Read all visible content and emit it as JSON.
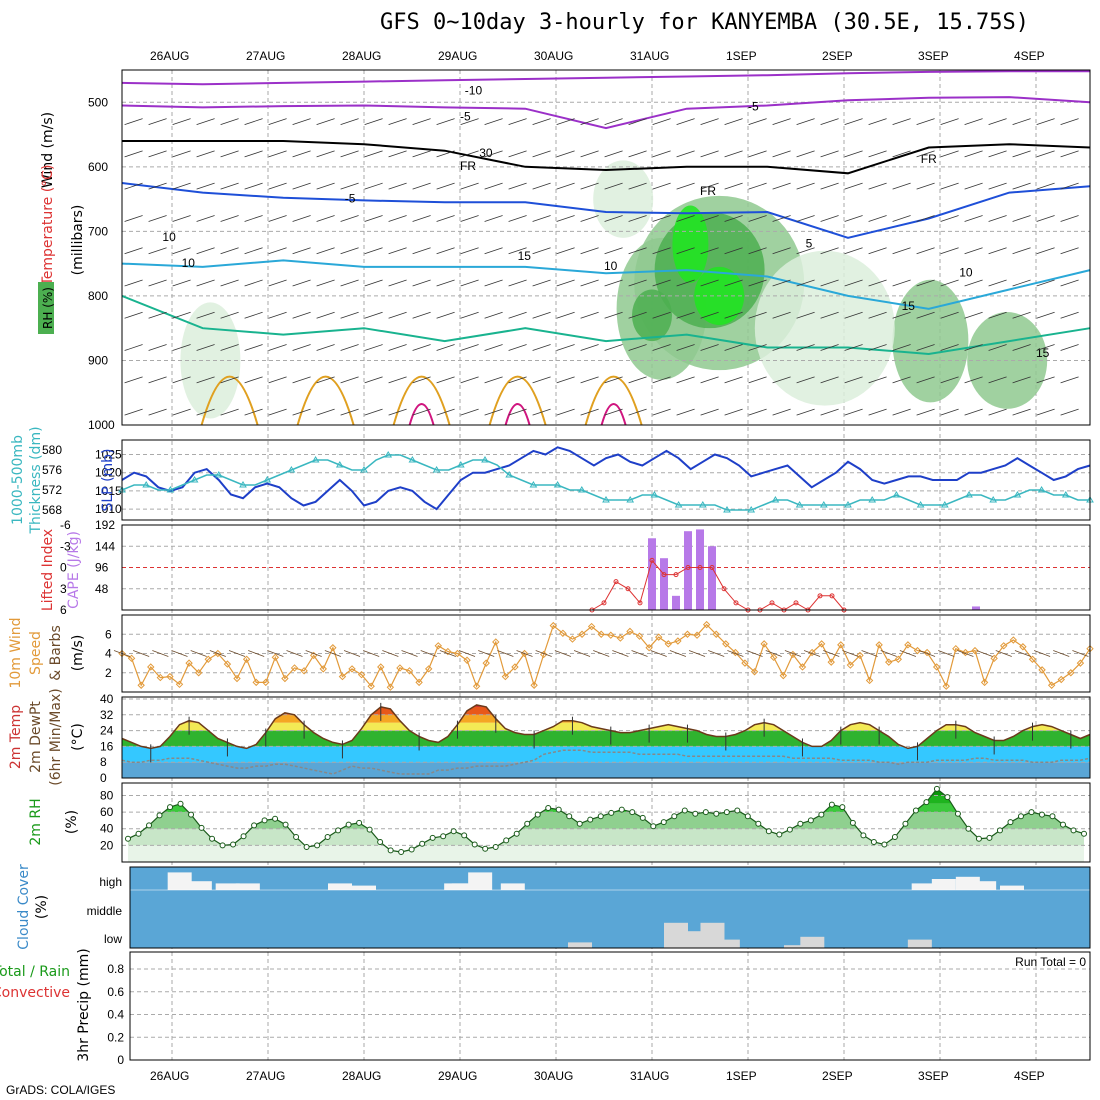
{
  "title": "GFS 0~10day 3-hourly for KANYEMBA (30.5E, 15.75S)",
  "footer": "GrADS: COLA/IGES",
  "dates": [
    "26AUG",
    "27AUG",
    "28AUG",
    "29AUG",
    "30AUG",
    "31AUG",
    "1SEP",
    "2SEP",
    "3SEP",
    "4SEP"
  ],
  "colors": {
    "rh_light": "#dcefdc",
    "rh_mid": "#8fc98f",
    "rh_strong": "#4caf50",
    "rh_max": "#1ee61e",
    "temp_purple": "#9b30c8",
    "temp_blue": "#1e4fd8",
    "temp_cyan": "#2aa8d8",
    "temp_teal": "#19b38f",
    "temp_orange": "#e0a020",
    "temp_magenta": "#d0157f",
    "slp": "#1e3fc8",
    "thickness": "#3ab7c0",
    "cape": "#b779e8",
    "li": "#dd3333",
    "wind": "#e29a3a",
    "cloud_bg": "#5aa6d6",
    "cloud_fill": "#f4f4f4"
  },
  "chart_data": [
    {
      "id": "profile",
      "type": "heatmap",
      "ylabel": "Wind (m/s) Temperature (°C) RH (%) (millibars)",
      "yticks": [
        500,
        600,
        700,
        800,
        900,
        1000
      ],
      "ylim": [
        450,
        1000
      ],
      "contour_labels": [
        "-10",
        "-5",
        "FR",
        "-5",
        "5",
        "10",
        "15",
        "10",
        "15",
        "30",
        "10",
        "FR",
        "FR",
        "-5",
        "10",
        "15"
      ],
      "isotherms": [
        {
          "label": "-10",
          "color": "temp_purple",
          "p": [
            470,
            472,
            470,
            468,
            466,
            464,
            462,
            460,
            458,
            455,
            453,
            452,
            452
          ]
        },
        {
          "label": "-5",
          "color": "temp_purple",
          "p": [
            505,
            508,
            506,
            505,
            508,
            510,
            540,
            510,
            505,
            497,
            493,
            492,
            500
          ]
        },
        {
          "label": "FR",
          "color": "#000000",
          "p": [
            560,
            560,
            560,
            565,
            575,
            600,
            605,
            600,
            600,
            610,
            570,
            565,
            570
          ]
        },
        {
          "label": "-5",
          "color": "temp_blue",
          "p": [
            625,
            640,
            648,
            652,
            655,
            655,
            670,
            672,
            670,
            710,
            680,
            640,
            630
          ]
        },
        {
          "label": "10",
          "color": "temp_cyan",
          "p": [
            750,
            755,
            745,
            755,
            755,
            755,
            765,
            760,
            770,
            800,
            820,
            790,
            760
          ]
        },
        {
          "label": "15",
          "color": "temp_teal",
          "p": [
            800,
            850,
            860,
            850,
            870,
            850,
            870,
            860,
            880,
            880,
            890,
            870,
            850
          ]
        }
      ]
    },
    {
      "id": "slp_thickness",
      "type": "line",
      "ylabel_left": "1000-500mb Thickness (dm)",
      "ylabel_right": "SLP (mb)",
      "yticks_left": [
        568,
        572,
        576,
        580
      ],
      "yticks_right": [
        1010,
        1015,
        1020,
        1025
      ],
      "series": [
        {
          "name": "SLP",
          "axis": "right",
          "values": [
            1018,
            1020,
            1019,
            1016,
            1015,
            1016,
            1020,
            1021,
            1018,
            1014,
            1013,
            1016,
            1017,
            1016,
            1013,
            1011,
            1012,
            1015,
            1018,
            1015,
            1011,
            1012,
            1015,
            1016,
            1015,
            1012,
            1010,
            1014,
            1018,
            1020,
            1020,
            1021,
            1022,
            1024,
            1026,
            1025,
            1027,
            1026,
            1024,
            1022,
            1024,
            1025,
            1023,
            1022,
            1024,
            1026,
            1024,
            1021,
            1023,
            1025,
            1024,
            1022,
            1019,
            1020,
            1021,
            1022,
            1019,
            1016,
            1018,
            1020,
            1023,
            1021,
            1018,
            1017,
            1018,
            1019,
            1019,
            1018,
            1018,
            1018,
            1020,
            1020,
            1021,
            1022,
            1024,
            1022,
            1020,
            1018,
            1019,
            1021,
            1022
          ]
        },
        {
          "name": "Thickness",
          "axis": "left",
          "values": [
            572,
            573,
            573,
            572,
            572,
            573,
            574,
            575,
            575,
            574,
            573,
            573,
            574,
            575,
            576,
            577,
            578,
            578,
            577,
            576,
            576,
            578,
            579,
            579,
            578,
            577,
            576,
            576,
            577,
            578,
            578,
            577,
            575,
            574,
            573,
            573,
            573,
            572,
            572,
            571,
            570,
            570,
            570,
            571,
            571,
            570,
            569,
            569,
            569,
            569,
            568,
            568,
            568,
            569,
            570,
            570,
            569,
            569,
            569,
            569,
            569,
            570,
            570,
            570,
            571,
            570,
            569,
            569,
            569,
            570,
            571,
            571,
            570,
            570,
            571,
            572,
            572,
            571,
            571,
            570,
            570
          ]
        }
      ]
    },
    {
      "id": "cape_li",
      "type": "bar",
      "ylabel_left": "Lifted Index",
      "ylabel_right": "CAPE (J/kg)",
      "yticks_left": [
        "6",
        "3",
        "0",
        "-3",
        "-6"
      ],
      "yticks_right": [
        48,
        96,
        144,
        192
      ],
      "cape": [
        {
          "t": 5.0,
          "v": 162
        },
        {
          "t": 5.125,
          "v": 117
        },
        {
          "t": 5.25,
          "v": 32
        },
        {
          "t": 5.375,
          "v": 178
        },
        {
          "t": 5.5,
          "v": 182
        },
        {
          "t": 5.625,
          "v": 144
        },
        {
          "t": 8.375,
          "v": 8
        }
      ],
      "li": [
        {
          "t": 4.375,
          "v": 6
        },
        {
          "t": 4.5,
          "v": 5
        },
        {
          "t": 4.625,
          "v": 2
        },
        {
          "t": 4.75,
          "v": 3
        },
        {
          "t": 4.875,
          "v": 5
        },
        {
          "t": 5.0,
          "v": -1
        },
        {
          "t": 5.125,
          "v": 1
        },
        {
          "t": 5.25,
          "v": 1
        },
        {
          "t": 5.375,
          "v": 0
        },
        {
          "t": 5.5,
          "v": 0
        },
        {
          "t": 5.625,
          "v": 0
        },
        {
          "t": 5.75,
          "v": 3
        },
        {
          "t": 5.875,
          "v": 5
        },
        {
          "t": 6.0,
          "v": 6
        },
        {
          "t": 6.125,
          "v": 6
        },
        {
          "t": 6.25,
          "v": 5
        },
        {
          "t": 6.375,
          "v": 6
        },
        {
          "t": 6.5,
          "v": 5
        },
        {
          "t": 6.625,
          "v": 6
        },
        {
          "t": 6.75,
          "v": 4
        },
        {
          "t": 6.875,
          "v": 4
        },
        {
          "t": 7.0,
          "v": 6
        }
      ],
      "reference_line": 0
    },
    {
      "id": "wind10m",
      "type": "line",
      "ylabel": "10m Wind Speed & Barbs (m/s)",
      "yticks": [
        2,
        4,
        6
      ],
      "values": [
        4.0,
        3.5,
        0.7,
        2.6,
        1.5,
        1.6,
        0.8,
        3.0,
        2.0,
        3.4,
        4.0,
        2.9,
        1.4,
        3.4,
        1.0,
        1.0,
        3.6,
        1.4,
        2.5,
        2.2,
        3.8,
        2.4,
        4.6,
        1.6,
        2.4,
        1.8,
        0.6,
        2.6,
        0.5,
        2.5,
        2.2,
        1.0,
        2.4,
        4.8,
        4.2,
        4.0,
        3.3,
        0.6,
        3.0,
        5.2,
        1.6,
        2.6,
        4.0,
        0.7,
        3.9,
        6.9,
        6.1,
        5.5,
        6.0,
        6.8,
        6.0,
        5.9,
        5.6,
        6.3,
        5.8,
        4.6,
        5.7,
        5.0,
        5.3,
        6.0,
        5.9,
        7.0,
        6.0,
        5.0,
        4.1,
        3.0,
        2.1,
        5.0,
        3.6,
        1.7,
        3.9,
        2.6,
        4.1,
        5.0,
        3.1,
        4.9,
        2.8,
        3.8,
        1.2,
        4.9,
        3.1,
        3.4,
        4.9,
        4.3,
        4.1,
        2.6,
        0.6,
        4.5,
        4.1,
        4.3,
        1.0,
        3.5,
        4.8,
        5.4,
        4.7,
        3.4,
        2.3,
        0.7,
        1.3,
        2.0,
        3.0,
        4.5
      ]
    },
    {
      "id": "temp2m",
      "type": "area",
      "ylabel": "2m Temp 2m DewPt (6hr Min/Max) (°C)",
      "yticks": [
        0,
        8,
        16,
        24,
        32,
        40
      ],
      "temp": [
        20,
        18,
        16,
        15,
        16,
        21,
        27,
        29,
        28,
        24,
        20,
        18,
        16,
        15,
        17,
        23,
        30,
        33,
        32,
        27,
        23,
        20,
        18,
        17,
        19,
        25,
        32,
        36,
        35,
        29,
        24,
        21,
        19,
        18,
        21,
        27,
        34,
        37,
        36,
        30,
        25,
        23,
        22,
        22,
        24,
        26,
        29,
        29,
        28,
        26,
        25,
        24,
        23,
        23,
        24,
        25,
        26,
        27,
        26,
        25,
        24,
        22,
        21,
        21,
        22,
        24,
        27,
        28,
        27,
        24,
        21,
        18,
        16,
        16,
        19,
        24,
        27,
        28,
        27,
        24,
        21,
        17,
        15,
        16,
        20,
        24,
        27,
        27,
        26,
        23,
        21,
        19,
        19,
        21,
        24,
        26,
        27,
        26,
        24,
        22,
        20,
        22
      ],
      "dewpt": [
        9,
        8,
        8,
        9,
        9,
        10,
        10,
        10,
        9,
        8,
        7,
        6,
        5,
        5,
        6,
        6,
        7,
        7,
        6,
        5,
        4,
        3,
        2,
        4,
        6,
        5,
        5,
        4,
        3,
        2,
        2,
        2,
        2,
        4,
        4,
        5,
        5,
        6,
        6,
        6,
        6,
        7,
        8,
        9,
        12,
        13,
        14,
        14,
        14,
        13,
        13,
        13,
        13,
        13,
        12,
        12,
        12,
        12,
        12,
        11,
        11,
        11,
        11,
        11,
        11,
        11,
        11,
        11,
        11,
        11,
        10,
        10,
        10,
        10,
        10,
        9,
        9,
        9,
        9,
        8,
        8,
        7,
        8,
        8,
        8,
        9,
        9,
        9,
        9,
        10,
        10,
        9,
        9,
        9,
        9,
        8,
        8,
        8,
        9,
        9,
        9,
        10
      ]
    },
    {
      "id": "rh2m",
      "type": "area",
      "ylabel": "2m RH (%)",
      "yticks": [
        20,
        40,
        60,
        80
      ],
      "values": [
        28,
        34,
        44,
        56,
        66,
        70,
        57,
        41,
        28,
        20,
        21,
        31,
        44,
        50,
        52,
        45,
        30,
        18,
        20,
        30,
        38,
        45,
        47,
        39,
        24,
        14,
        12,
        15,
        22,
        29,
        31,
        37,
        32,
        21,
        16,
        18,
        26,
        34,
        46,
        57,
        65,
        63,
        55,
        46,
        51,
        55,
        59,
        63,
        60,
        53,
        43,
        48,
        55,
        62,
        58,
        60,
        58,
        60,
        62,
        55,
        46,
        37,
        33,
        39,
        46,
        50,
        57,
        69,
        66,
        47,
        32,
        24,
        21,
        30,
        46,
        62,
        72,
        88,
        78,
        58,
        40,
        28,
        29,
        38,
        48,
        55,
        60,
        57,
        55,
        45,
        38,
        34
      ]
    },
    {
      "id": "cloud",
      "type": "bar",
      "ylabel": "Cloud Cover (%)",
      "ylevels": [
        "high",
        "middle",
        "low"
      ],
      "high": [
        {
          "t": 0.08,
          "v": 0.8
        },
        {
          "t": 0.29,
          "v": 0.4
        },
        {
          "t": 0.58,
          "v": 0.3
        },
        {
          "t": 0.79,
          "v": 0.3
        },
        {
          "t": 1.75,
          "v": 0.3
        },
        {
          "t": 2.0,
          "v": 0.2
        },
        {
          "t": 2.96,
          "v": 0.3
        },
        {
          "t": 3.04,
          "v": 0.3
        },
        {
          "t": 3.21,
          "v": 0.8
        },
        {
          "t": 3.55,
          "v": 0.3
        },
        {
          "t": 7.83,
          "v": 0.3
        },
        {
          "t": 8.04,
          "v": 0.5
        },
        {
          "t": 8.29,
          "v": 0.6
        },
        {
          "t": 8.46,
          "v": 0.4
        },
        {
          "t": 8.75,
          "v": 0.2
        }
      ],
      "low": [
        {
          "t": 4.25,
          "v": 0.2
        },
        {
          "t": 5.25,
          "v": 0.9
        },
        {
          "t": 5.42,
          "v": 0.6
        },
        {
          "t": 5.63,
          "v": 0.9
        },
        {
          "t": 5.79,
          "v": 0.3
        },
        {
          "t": 6.5,
          "v": 0.1
        },
        {
          "t": 6.67,
          "v": 0.4
        },
        {
          "t": 7.79,
          "v": 0.3
        }
      ]
    },
    {
      "id": "precip",
      "type": "bar",
      "ylabel_lines": [
        "Total / Rain",
        "Convective",
        "3hr Precip (mm)"
      ],
      "yticks": [
        0,
        0.2,
        0.4,
        0.6,
        0.8
      ],
      "run_total_label": "Run Total = 0",
      "values": []
    }
  ]
}
